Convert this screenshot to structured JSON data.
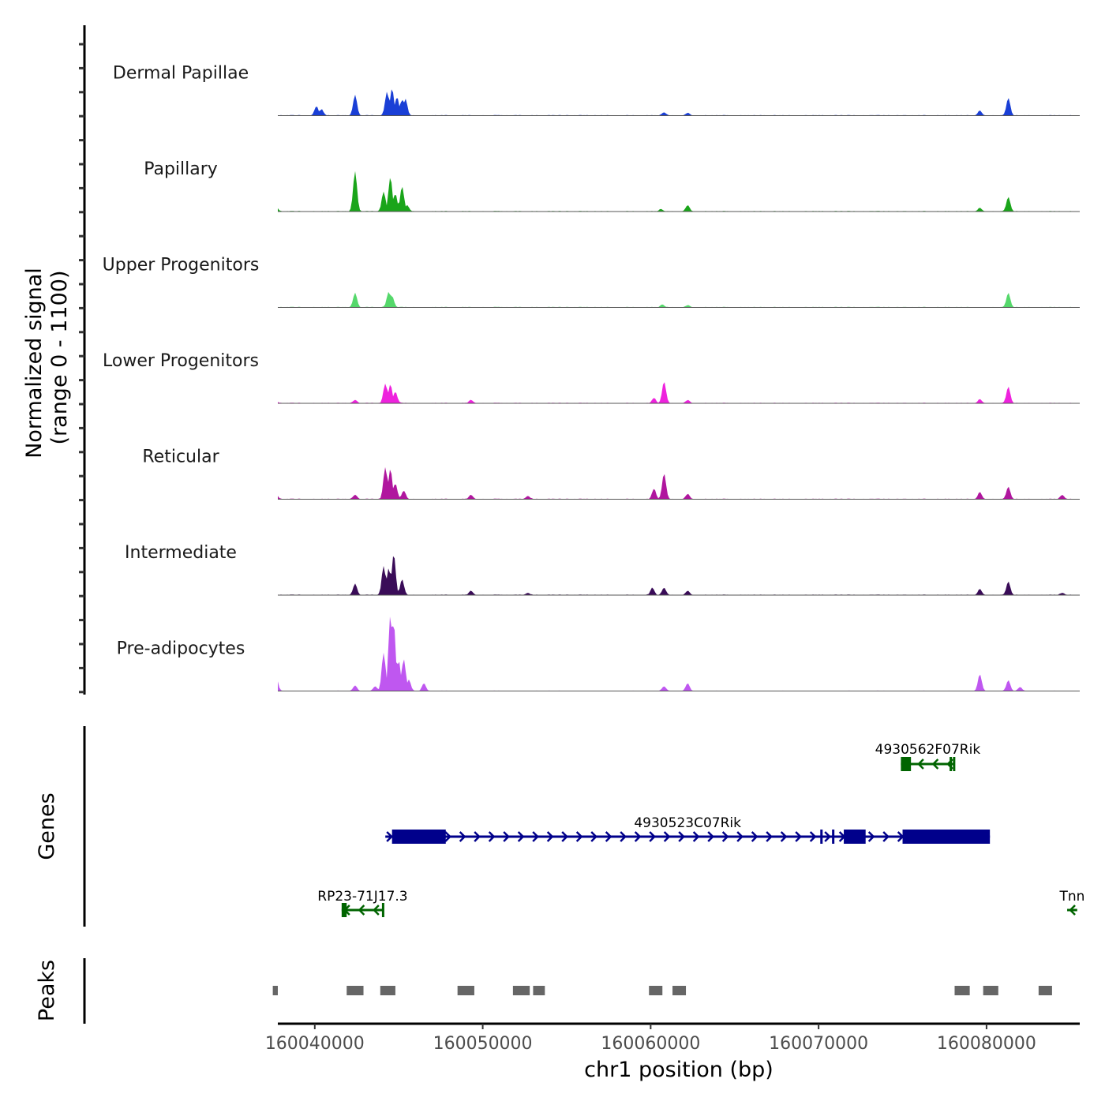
{
  "chart_data": {
    "type": "area",
    "title": "",
    "chromosome": "chr1",
    "xlabel": "chr1 position (bp)",
    "ylabel_line1": "Normalized signal",
    "ylabel_line2": "(range 0 - 1100)",
    "y_range": [
      0,
      1100
    ],
    "x_range": [
      160037800,
      160085550
    ],
    "x_ticks": [
      160040000,
      160050000,
      160060000,
      160070000,
      160080000
    ],
    "x_tick_labels": [
      "160040000",
      "160050000",
      "160060000",
      "160070000",
      "160080000"
    ],
    "series": [
      {
        "name": "Dermal Papillae",
        "color": "#1a3fd6",
        "peaks": [
          [
            160040100,
            90
          ],
          [
            160040400,
            60
          ],
          [
            160042400,
            200
          ],
          [
            160044300,
            230
          ],
          [
            160044600,
            260
          ],
          [
            160044900,
            180
          ],
          [
            160045200,
            150
          ],
          [
            160045400,
            160
          ],
          [
            160060800,
            30
          ],
          [
            160062200,
            25
          ],
          [
            160079600,
            50
          ],
          [
            160081300,
            170
          ]
        ]
      },
      {
        "name": "Papillary",
        "color": "#1aa51a",
        "peaks": [
          [
            160037700,
            40
          ],
          [
            160042400,
            390
          ],
          [
            160044100,
            190
          ],
          [
            160044500,
            330
          ],
          [
            160044800,
            170
          ],
          [
            160045200,
            240
          ],
          [
            160045500,
            60
          ],
          [
            160060600,
            20
          ],
          [
            160062200,
            60
          ],
          [
            160079600,
            35
          ],
          [
            160081300,
            140
          ]
        ]
      },
      {
        "name": "Upper Progenitors",
        "color": "#55d86b",
        "peaks": [
          [
            160042400,
            140
          ],
          [
            160044400,
            150
          ],
          [
            160044600,
            110
          ],
          [
            160060700,
            25
          ],
          [
            160062200,
            20
          ],
          [
            160081300,
            140
          ]
        ]
      },
      {
        "name": "Lower Progenitors",
        "color": "#ee22dd",
        "peaks": [
          [
            160037700,
            15
          ],
          [
            160042400,
            30
          ],
          [
            160044200,
            190
          ],
          [
            160044500,
            180
          ],
          [
            160044800,
            110
          ],
          [
            160049300,
            30
          ],
          [
            160060200,
            50
          ],
          [
            160060800,
            210
          ],
          [
            160062200,
            30
          ],
          [
            160079600,
            40
          ],
          [
            160081300,
            160
          ]
        ]
      },
      {
        "name": "Reticular",
        "color": "#b0169e",
        "peaks": [
          [
            160037700,
            40
          ],
          [
            160042400,
            40
          ],
          [
            160044200,
            310
          ],
          [
            160044500,
            290
          ],
          [
            160044800,
            150
          ],
          [
            160045300,
            80
          ],
          [
            160049300,
            40
          ],
          [
            160052700,
            30
          ],
          [
            160060200,
            100
          ],
          [
            160060800,
            250
          ],
          [
            160062200,
            50
          ],
          [
            160079600,
            70
          ],
          [
            160081300,
            120
          ],
          [
            160084500,
            40
          ]
        ]
      },
      {
        "name": "Intermediate",
        "color": "#3a0c58",
        "peaks": [
          [
            160042400,
            110
          ],
          [
            160044100,
            280
          ],
          [
            160044400,
            260
          ],
          [
            160044700,
            400
          ],
          [
            160045200,
            150
          ],
          [
            160049300,
            40
          ],
          [
            160052700,
            20
          ],
          [
            160060100,
            70
          ],
          [
            160060800,
            70
          ],
          [
            160062200,
            40
          ],
          [
            160079600,
            60
          ],
          [
            160081300,
            130
          ],
          [
            160084500,
            20
          ]
        ]
      },
      {
        "name": "Pre-adipocytes",
        "color": "#bf57f0",
        "peaks": [
          [
            160037700,
            180
          ],
          [
            160042400,
            70
          ],
          [
            160043600,
            60
          ],
          [
            160044100,
            500
          ],
          [
            160044500,
            1000
          ],
          [
            160044700,
            900
          ],
          [
            160045000,
            400
          ],
          [
            160045300,
            420
          ],
          [
            160045600,
            150
          ],
          [
            160046500,
            100
          ],
          [
            160060800,
            60
          ],
          [
            160062200,
            100
          ],
          [
            160079600,
            220
          ],
          [
            160081300,
            140
          ],
          [
            160082000,
            50
          ]
        ]
      }
    ],
    "genes": [
      {
        "name": "4930562F07Rik",
        "strand": "-",
        "color": "#006400",
        "start": 160074900,
        "end": 160078100,
        "exons": [
          [
            160074900,
            160075500
          ],
          [
            160077800,
            160077900
          ],
          [
            160078000,
            160078100
          ]
        ]
      },
      {
        "name": "4930523C07Rik",
        "strand": "+",
        "color": "#00008b",
        "start": 160044200,
        "end": 160080200,
        "exons": [
          [
            160044600,
            160047800
          ],
          [
            160070100,
            160070200
          ],
          [
            160070800,
            160070900
          ],
          [
            160071500,
            160072800
          ],
          [
            160075000,
            160080200
          ]
        ]
      },
      {
        "name": "RP23-71J17.3",
        "strand": "-",
        "color": "#006400",
        "start": 160041600,
        "end": 160044100,
        "exons": [
          [
            160041600,
            160041900
          ],
          [
            160044000,
            160044100
          ]
        ]
      },
      {
        "name": "Tnn",
        "strand": "-",
        "color": "#006400",
        "start": 160084800,
        "end": 160085400,
        "exons": []
      }
    ],
    "peaks_track": {
      "color": "#666666",
      "regions": [
        [
          160037500,
          160037800
        ],
        [
          160041900,
          160042900
        ],
        [
          160043900,
          160044800
        ],
        [
          160048500,
          160049500
        ],
        [
          160051800,
          160052800
        ],
        [
          160053000,
          160053700
        ],
        [
          160059900,
          160060700
        ],
        [
          160061300,
          160062100
        ],
        [
          160078100,
          160079000
        ],
        [
          160079800,
          160080700
        ],
        [
          160083100,
          160083900
        ]
      ]
    },
    "panel_labels": {
      "genes": "Genes",
      "peaks": "Peaks"
    },
    "legend": "none",
    "grid": false
  }
}
